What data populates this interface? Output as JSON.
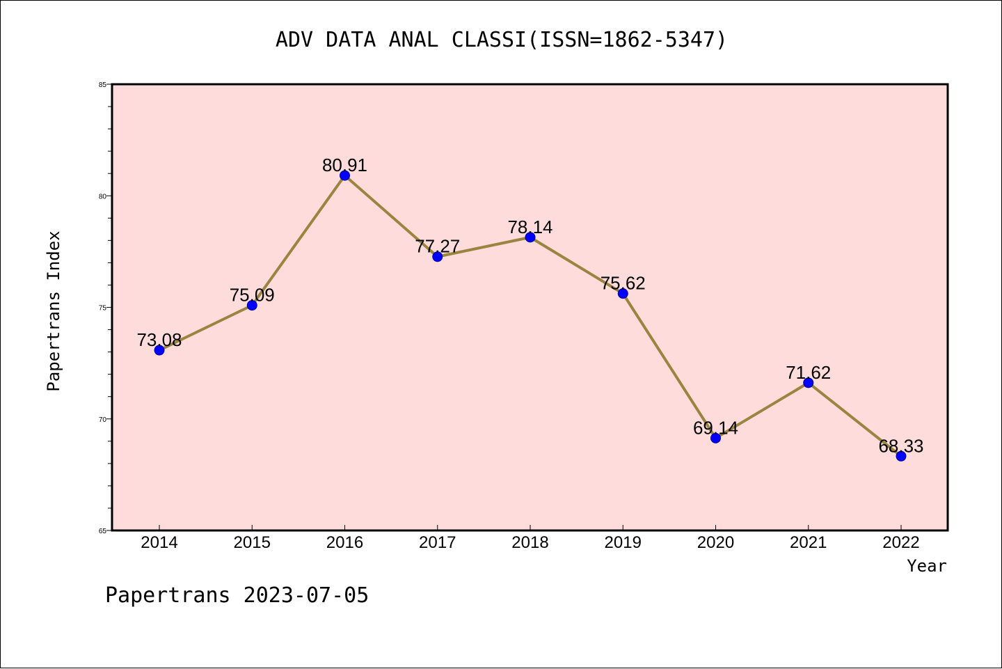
{
  "chart_data": {
    "type": "line",
    "title": "ADV DATA ANAL CLASSI(ISSN=1862-5347)",
    "xlabel": "Year",
    "ylabel": "Papertrans Index",
    "categories": [
      "2014",
      "2015",
      "2016",
      "2017",
      "2018",
      "2019",
      "2020",
      "2021",
      "2022"
    ],
    "values": [
      73.08,
      75.09,
      80.91,
      77.27,
      78.14,
      75.62,
      69.14,
      71.62,
      68.33
    ],
    "data_labels": [
      "73.08",
      "75.09",
      "80.91",
      "77.27",
      "78.14",
      "75.62",
      "69.14",
      "71.62",
      "68.33"
    ],
    "ylim": [
      65,
      85
    ],
    "yticks": [
      "65",
      "70",
      "75",
      "80",
      "85"
    ],
    "grid": false,
    "legend": "none",
    "colors": {
      "plot_background": "#ffdcdc",
      "line": "#9a8540",
      "marker": "#0000ff",
      "marker_edge": "#0000a0"
    }
  },
  "footer": "Papertrans 2023-07-05"
}
